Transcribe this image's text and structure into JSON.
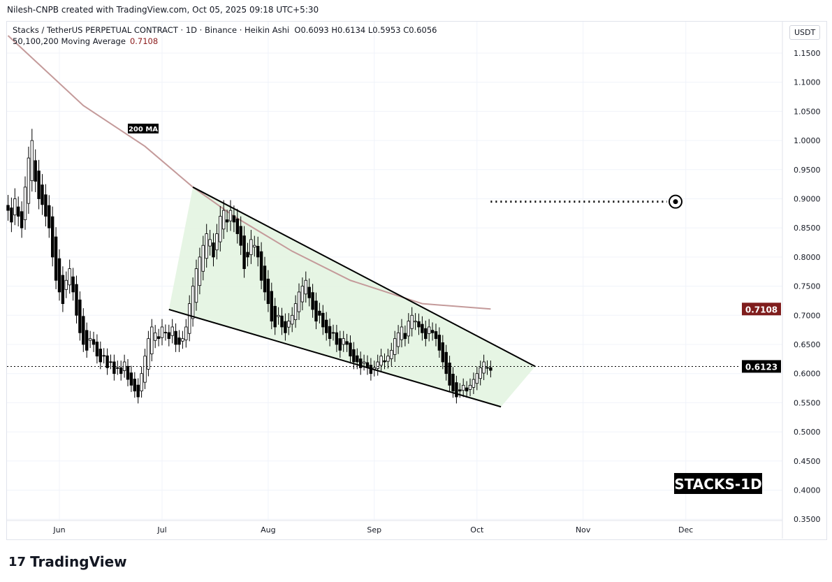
{
  "credit": "Nilesh-CNPB created with TradingView.com, Oct 05, 2025 09:18 UTC+5:30",
  "legend": {
    "symbol": "Stacks / TetherUS PERPETUAL CONTRACT · 1D · Binance · Heikin Ashi",
    "ohlc": "O0.6093  H0.6134  L0.5953  C0.6056",
    "ma_label": "50,100,200 Moving Average",
    "ma_value": "0.7108"
  },
  "unit": "USDT",
  "logo": "TradingView",
  "colors": {
    "up": "#ffffff",
    "down": "#000000",
    "ma": "#c49a9a",
    "wedge_fill": "#e3f4e1",
    "ma_badge": "#7f1d1d"
  },
  "chart_data": {
    "type": "candlestick",
    "ylim": [
      0.35,
      1.15
    ],
    "yticks": [
      "1.1500",
      "1.1000",
      "1.0500",
      "1.0000",
      "0.9500",
      "0.9000",
      "0.8500",
      "0.8000",
      "0.7500",
      "0.7000",
      "0.6500",
      "0.6000",
      "0.5500",
      "0.5000",
      "0.4500",
      "0.4000",
      "0.3500"
    ],
    "xticks": [
      {
        "label": "Jun",
        "date": "2025-06-01"
      },
      {
        "label": "Jul",
        "date": "2025-07-01"
      },
      {
        "label": "Aug",
        "date": "2025-08-01"
      },
      {
        "label": "Sep",
        "date": "2025-09-01"
      },
      {
        "label": "Oct",
        "date": "2025-10-01"
      },
      {
        "label": "Nov",
        "date": "2025-11-01"
      },
      {
        "label": "Dec",
        "date": "2025-12-01"
      }
    ],
    "start_date": "2025-05-17",
    "closes": [
      0.88,
      0.86,
      0.9,
      0.87,
      0.85,
      0.92,
      0.97,
      1.0,
      0.93,
      0.9,
      0.89,
      0.87,
      0.85,
      0.8,
      0.76,
      0.74,
      0.72,
      0.76,
      0.78,
      0.74,
      0.7,
      0.67,
      0.65,
      0.64,
      0.66,
      0.65,
      0.63,
      0.62,
      0.63,
      0.61,
      0.62,
      0.6,
      0.61,
      0.6,
      0.62,
      0.59,
      0.58,
      0.57,
      0.56,
      0.6,
      0.63,
      0.66,
      0.68,
      0.67,
      0.66,
      0.68,
      0.67,
      0.66,
      0.68,
      0.65,
      0.65,
      0.66,
      0.68,
      0.72,
      0.75,
      0.78,
      0.8,
      0.82,
      0.84,
      0.83,
      0.8,
      0.84,
      0.87,
      0.88,
      0.86,
      0.88,
      0.86,
      0.84,
      0.82,
      0.78,
      0.8,
      0.83,
      0.82,
      0.8,
      0.76,
      0.74,
      0.72,
      0.69,
      0.68,
      0.7,
      0.68,
      0.67,
      0.69,
      0.7,
      0.72,
      0.74,
      0.75,
      0.76,
      0.73,
      0.71,
      0.69,
      0.7,
      0.68,
      0.67,
      0.66,
      0.67,
      0.65,
      0.64,
      0.66,
      0.65,
      0.63,
      0.62,
      0.62,
      0.61,
      0.62,
      0.61,
      0.6,
      0.61,
      0.62,
      0.63,
      0.62,
      0.63,
      0.64,
      0.66,
      0.67,
      0.68,
      0.66,
      0.69,
      0.7,
      0.69,
      0.68,
      0.67,
      0.66,
      0.68,
      0.67,
      0.66,
      0.64,
      0.62,
      0.6,
      0.58,
      0.57,
      0.56,
      0.57,
      0.58,
      0.57,
      0.58,
      0.59,
      0.6,
      0.61,
      0.62,
      0.61,
      0.6056
    ],
    "ma200": [
      [
        "2025-05-17",
        1.18
      ],
      [
        "2025-06-08",
        1.06
      ],
      [
        "2025-06-26",
        0.99
      ],
      [
        "2025-07-10",
        0.92
      ],
      [
        "2025-07-22",
        0.87
      ],
      [
        "2025-08-08",
        0.81
      ],
      [
        "2025-08-25",
        0.76
      ],
      [
        "2025-09-15",
        0.72
      ],
      [
        "2025-10-05",
        0.7108
      ]
    ],
    "ma_label": "200 MA",
    "wedge_upper": [
      [
        "2025-07-10",
        0.92
      ],
      [
        "2025-10-18",
        0.6123
      ]
    ],
    "wedge_lower": [
      [
        "2025-07-03",
        0.71
      ],
      [
        "2025-10-08",
        0.543
      ]
    ],
    "target": {
      "price": 0.895,
      "from": "2025-10-05",
      "to": "2025-11-28"
    },
    "last_price": "0.6123",
    "ma_price": "0.7108",
    "annotation": "STACKS-1D"
  }
}
